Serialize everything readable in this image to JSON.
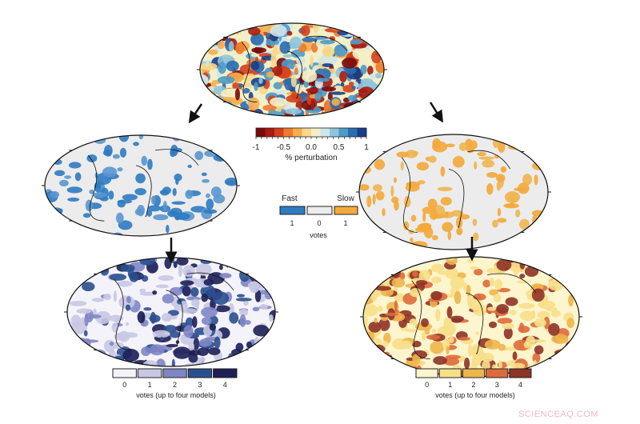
{
  "perturbation_colorbar": {
    "label": "% perturbation",
    "ticks": [
      "-1",
      "-0.5",
      "0.0",
      "0.5",
      "1"
    ],
    "colors": [
      "#7a0a0a",
      "#a81c10",
      "#d3401c",
      "#ee7a2c",
      "#f6ad4e",
      "#f8d88a",
      "#f3efc8",
      "#cfe6ea",
      "#8ec5dc",
      "#4e9ac8",
      "#2a6cb0",
      "#173e8a"
    ]
  },
  "votes_legend": {
    "fast_label": "Fast",
    "slow_label": "Slow",
    "values": [
      "1",
      "0",
      "1"
    ],
    "colors": [
      "#2f7bc2",
      "#ececec",
      "#f4a93a"
    ],
    "label": "votes"
  },
  "fast_colorbar": {
    "ticks": [
      "0",
      "1",
      "2",
      "3",
      "4"
    ],
    "colors": [
      "#f4f3f9",
      "#c9c8e3",
      "#7f86c4",
      "#2a4f8e",
      "#1d1f57"
    ],
    "label": "votes (up to four models)"
  },
  "slow_colorbar": {
    "ticks": [
      "0",
      "1",
      "2",
      "3",
      "4"
    ],
    "colors": [
      "#fdf5cd",
      "#f7e08a",
      "#eeb54c",
      "#de6a3c",
      "#8e3328"
    ],
    "label": "votes (up to four models)"
  },
  "watermark": "SCIENCEAQ.COM"
}
